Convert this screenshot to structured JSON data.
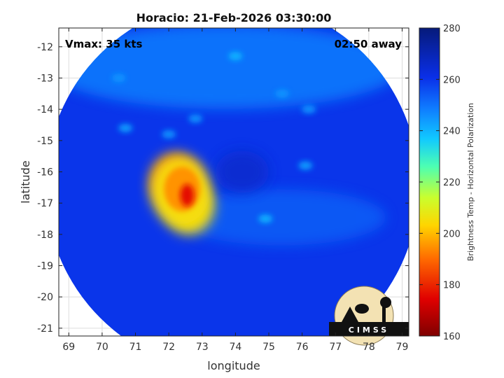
{
  "chart_data": {
    "type": "heatmap",
    "title": "Horacio: 21-Feb-2026 03:30:00",
    "xlabel": "longitude",
    "ylabel": "latitude",
    "xlim": [
      68.7,
      79.2
    ],
    "ylim": [
      -21.25,
      -11.4
    ],
    "xticks": [
      69,
      70,
      71,
      72,
      73,
      74,
      75,
      76,
      77,
      78,
      79
    ],
    "yticks": [
      -12,
      -13,
      -14,
      -15,
      -16,
      -17,
      -18,
      -19,
      -20,
      -21
    ],
    "grid": true,
    "annotations": {
      "top_left": "Vmax: 35 kts",
      "top_right": "02:50 away"
    },
    "colorbar": {
      "label": "Brightness Temp - Horizontal Polarization",
      "min": 160,
      "max": 280,
      "ticks": [
        160,
        180,
        200,
        220,
        240,
        260,
        280
      ]
    },
    "swath": {
      "center_lon": 73.9,
      "center_lat": -16.45,
      "radius_deg": 5.6
    },
    "features": [
      {
        "lon": 72.5,
        "lat": -16.7,
        "tb": 175
      },
      {
        "lon": 72.2,
        "lat": -16.3,
        "tb": 195
      },
      {
        "lon": 72.6,
        "lat": -17.1,
        "tb": 205
      },
      {
        "lon": 74.9,
        "lat": -17.5,
        "tb": 240
      },
      {
        "lon": 75.4,
        "lat": -13.5,
        "tb": 245
      },
      {
        "lon": 76.2,
        "lat": -14.0,
        "tb": 245
      },
      {
        "lon": 76.1,
        "lat": -15.8,
        "tb": 243
      },
      {
        "lon": 70.7,
        "lat": -14.6,
        "tb": 243
      },
      {
        "lon": 72.0,
        "lat": -14.8,
        "tb": 245
      },
      {
        "lon": 72.8,
        "lat": -14.3,
        "tb": 245
      },
      {
        "lon": 74.0,
        "lat": -12.3,
        "tb": 240
      },
      {
        "lon": 70.5,
        "lat": -13.0,
        "tb": 245
      }
    ]
  },
  "logo": {
    "text": "CIMSS"
  }
}
